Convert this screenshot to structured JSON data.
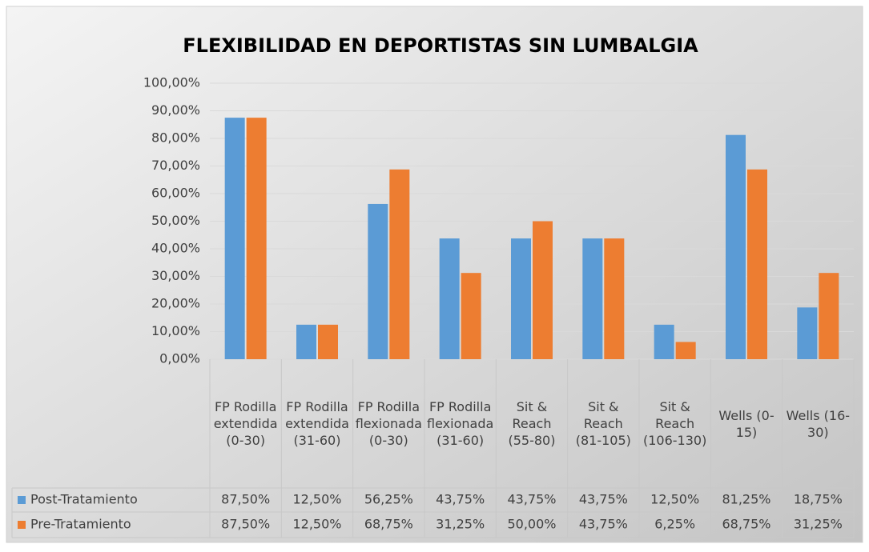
{
  "chart_data": {
    "type": "bar",
    "title": "FLEXIBILIDAD EN DEPORTISTAS SIN LUMBALGIA",
    "categories": [
      "FP Rodilla extendida (0-30)",
      "FP Rodilla extendida (31-60)",
      "FP Rodilla flexionada (0-30)",
      "FP Rodilla flexionada (31-60)",
      "Sit & Reach (55-80)",
      "Sit & Reach (81-105)",
      "Sit & Reach (106-130)",
      "Wells (0-15)",
      "Wells (16-30)"
    ],
    "series": [
      {
        "name": "Post-Tratamiento",
        "color": "#5b9bd5",
        "values": [
          87.5,
          12.5,
          56.25,
          43.75,
          43.75,
          43.75,
          12.5,
          81.25,
          18.75
        ],
        "value_labels": [
          "87,50%",
          "12,50%",
          "56,25%",
          "43,75%",
          "43,75%",
          "43,75%",
          "12,50%",
          "81,25%",
          "18,75%"
        ]
      },
      {
        "name": "Pre-Tratamiento",
        "color": "#ed7d31",
        "values": [
          87.5,
          12.5,
          68.75,
          31.25,
          50,
          43.75,
          6.25,
          68.75,
          31.25
        ],
        "value_labels": [
          "87,50%",
          "12,50%",
          "68,75%",
          "31,25%",
          "50,00%",
          "43,75%",
          "6,25%",
          "68,75%",
          "31,25%"
        ]
      }
    ],
    "ylim": [
      0,
      100
    ],
    "yticks": [
      {
        "value": 0,
        "label": "0,00%"
      },
      {
        "value": 10,
        "label": "10,00%"
      },
      {
        "value": 20,
        "label": "20,00%"
      },
      {
        "value": 30,
        "label": "30,00%"
      },
      {
        "value": 40,
        "label": "40,00%"
      },
      {
        "value": 50,
        "label": "50,00%"
      },
      {
        "value": 60,
        "label": "60,00%"
      },
      {
        "value": 70,
        "label": "70,00%"
      },
      {
        "value": 80,
        "label": "80,00%"
      },
      {
        "value": 90,
        "label": "90,00%"
      },
      {
        "value": 100,
        "label": "100,00%"
      }
    ],
    "grid": true
  }
}
